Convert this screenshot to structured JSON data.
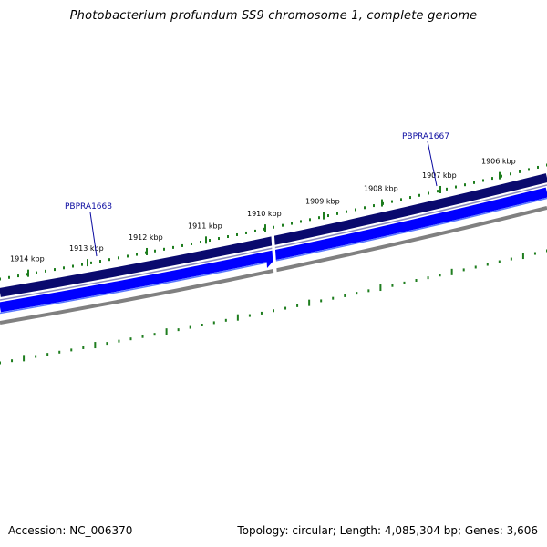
{
  "title": "Photobacterium profundum SS9 chromosome 1, complete genome",
  "footer": {
    "accession": "Accession: NC_006370",
    "summary": "Topology: circular; Length: 4,085,304 bp; Genes: 3,606"
  },
  "colors": {
    "forward_track": "#0a0a6e",
    "reverse_track": "#0000ff",
    "backbone": "#808080",
    "tick": "#1e7d1e",
    "gene_label": "#0a0aa0"
  },
  "ruler": {
    "labels": [
      "1914 kbp",
      "1913 kbp",
      "1912 kbp",
      "1911 kbp",
      "1910 kbp",
      "1909 kbp",
      "1908 kbp",
      "1907 kbp",
      "1906 kbp"
    ]
  },
  "genes": [
    {
      "name": "PBPRA1668",
      "strand": "forward"
    },
    {
      "name": "PBPRA1667",
      "strand": "forward"
    }
  ]
}
